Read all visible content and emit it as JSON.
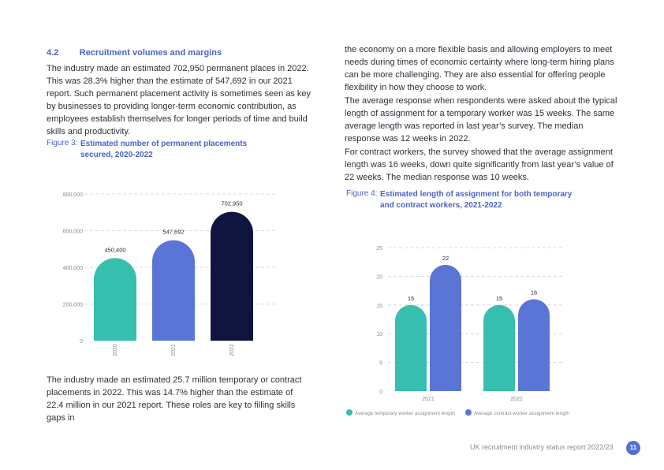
{
  "section": {
    "number": "4.2",
    "title": "Recruitment volumes and margins"
  },
  "left": {
    "para1": "The industry made an estimated 702,950 permanent places in 2022. This was 28.3% higher than the estimate of 547,692 in our 2021 report. Such permanent placement activity is sometimes seen as key by businesses to providing longer-term economic contribution, as employees establish themselves for longer periods of time and build skills and productivity.",
    "para2": "The industry made an estimated 25.7 million temporary or contract placements in 2022. This was 14.7% higher than the estimate of 22.4 million in our 2021 report. These roles are key to filling skills gaps in"
  },
  "right": {
    "para1": "the economy on a more flexible basis and allowing employers to meet needs during times of economic certainty where long-term hiring plans can be more challenging. They are also essential for offering people flexibility in how they choose to work.",
    "para2": "The average response when respondents were asked about the typical length of assignment for a temporary worker was 15 weeks. The same average length was reported in last year’s survey. The median response was 12 weeks in 2022.",
    "para3": "For contract workers, the survey showed that the average assignment length was 16 weeks, down quite significantly from last year’s value of 22 weeks. The median response was 10 weeks."
  },
  "figure3": {
    "label": "Figure 3:",
    "title_line1": "Estimated number of permanent placements",
    "title_line2": "secured, 2020-2022"
  },
  "figure4": {
    "label": "Figure 4:",
    "title_line1": "Estimated length of assignment for both temporary",
    "title_line2": "and contract workers, 2021-2022"
  },
  "footer": {
    "report_title": "UK recruitment industry status report 2022/23",
    "page_number": "11"
  },
  "chart_data": [
    {
      "type": "bar",
      "categories": [
        "2020",
        "2021",
        "2022"
      ],
      "values": [
        450400,
        547692,
        702950
      ],
      "value_labels": [
        "450,400",
        "547,692",
        "702,950"
      ],
      "colors": [
        "#36bfae",
        "#5a75d6",
        "#10153f"
      ],
      "yticks": [
        0,
        200000,
        400000,
        600000,
        800000
      ],
      "ytick_labels": [
        "0",
        "200,000",
        "400,000",
        "600,000",
        "800,000"
      ],
      "ylim": [
        0,
        800000
      ],
      "grid": true
    },
    {
      "type": "bar",
      "categories": [
        "2021",
        "2022"
      ],
      "series": [
        {
          "name": "Average temporary worker assignment length",
          "values": [
            15,
            15
          ],
          "color": "#36bfae"
        },
        {
          "name": "Average contract worker assignment length",
          "values": [
            22,
            16
          ],
          "color": "#5a75d6"
        }
      ],
      "yticks": [
        0,
        5,
        10,
        15,
        20,
        25
      ],
      "ylim": [
        0,
        25
      ],
      "grid": true,
      "legend": "bottom"
    }
  ]
}
